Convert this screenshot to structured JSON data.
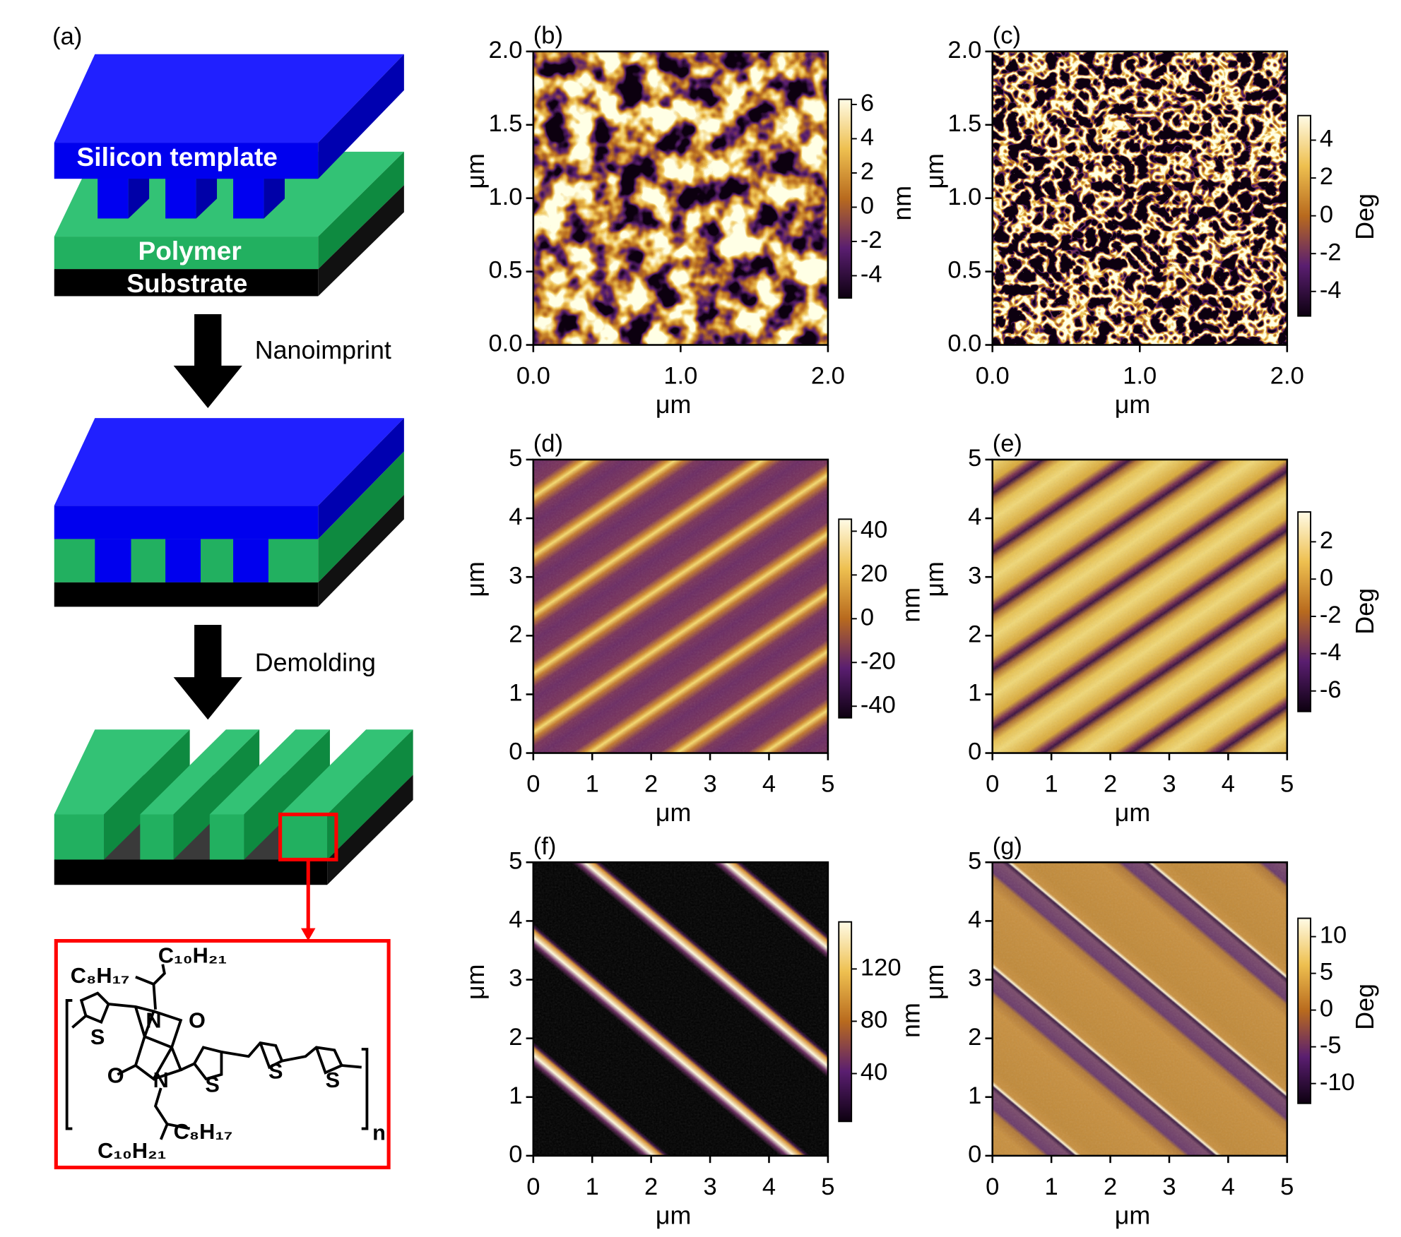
{
  "panel_a": {
    "label": "(a)",
    "template": "Silicon template",
    "polymer": "Polymer",
    "substrate": "Substrate",
    "step_1": "Nanoimprint",
    "step_2": "Demolding",
    "structure": {
      "chains": [
        "C₁₀H₂₁",
        "C₈H₁₇",
        "C₈H₁₇",
        "C₁₀H₂₁"
      ],
      "atoms": [
        "S",
        "N",
        "O",
        "O",
        "N",
        "S",
        "S",
        "S"
      ],
      "repeat": "n"
    }
  },
  "panels": [
    {
      "label": "(b)",
      "xlabel": "μm",
      "ylabel": "μm",
      "xlim": [
        0,
        2
      ],
      "xticks": [
        {
          "value": 0,
          "label": "0.0"
        },
        {
          "value": 1,
          "label": "1.0"
        },
        {
          "value": 2,
          "label": "2.0"
        }
      ],
      "ylim": [
        0,
        2
      ],
      "yticks": [
        {
          "value": 0,
          "label": "0.0"
        },
        {
          "value": 0.5,
          "label": "0.5"
        },
        {
          "value": 1,
          "label": "1.0"
        },
        {
          "value": 1.5,
          "label": "1.5"
        },
        {
          "value": 2,
          "label": "2.0"
        }
      ],
      "colorbar": {
        "label": "nm",
        "lim": [
          -5.3,
          6.3
        ],
        "ticks": [
          -4,
          -2,
          0,
          2,
          4,
          6
        ]
      }
    },
    {
      "label": "(c)",
      "xlabel": "μm",
      "ylabel": "μm",
      "xlim": [
        0,
        2
      ],
      "xticks": [
        {
          "value": 0,
          "label": "0.0"
        },
        {
          "value": 1,
          "label": "1.0"
        },
        {
          "value": 2,
          "label": "2.0"
        }
      ],
      "ylim": [
        0,
        2
      ],
      "yticks": [
        {
          "value": 0,
          "label": "0.0"
        },
        {
          "value": 0.5,
          "label": "0.5"
        },
        {
          "value": 1,
          "label": "1.0"
        },
        {
          "value": 1.5,
          "label": "1.5"
        },
        {
          "value": 2,
          "label": "2.0"
        }
      ],
      "colorbar": {
        "label": "Deg",
        "lim": [
          -5.3,
          5.3
        ],
        "ticks": [
          -4,
          -2,
          0,
          2,
          4
        ]
      }
    },
    {
      "label": "(d)",
      "xlabel": "μm",
      "ylabel": "μm",
      "xlim": [
        0,
        5
      ],
      "xticks": [
        0,
        1,
        2,
        3,
        4,
        5
      ],
      "ylim": [
        0,
        5
      ],
      "yticks": [
        0,
        1,
        2,
        3,
        4,
        5
      ],
      "colorbar": {
        "label": "nm",
        "lim": [
          -45.3,
          45.5
        ],
        "ticks": [
          -40,
          -20,
          0,
          20,
          40
        ]
      }
    },
    {
      "label": "(e)",
      "xlabel": "μm",
      "ylabel": "μm",
      "xlim": [
        0,
        5
      ],
      "xticks": [
        0,
        1,
        2,
        3,
        4,
        5
      ],
      "ylim": [
        0,
        5
      ],
      "yticks": [
        0,
        1,
        2,
        3,
        4,
        5
      ],
      "colorbar": {
        "label": "Deg",
        "lim": [
          -7.1,
          3.6
        ],
        "ticks": [
          -6,
          -4,
          -2,
          0,
          2
        ]
      }
    },
    {
      "label": "(f)",
      "xlabel": "μm",
      "ylabel": "μm",
      "xlim": [
        0,
        5
      ],
      "xticks": [
        0,
        1,
        2,
        3,
        4,
        5
      ],
      "ylim": [
        0,
        5
      ],
      "yticks": [
        0,
        1,
        2,
        3,
        4,
        5
      ],
      "colorbar": {
        "label": "nm",
        "lim": [
          3.4,
          156
        ],
        "ticks": [
          40,
          80,
          120
        ]
      }
    },
    {
      "label": "(g)",
      "xlabel": "μm",
      "ylabel": "μm",
      "xlim": [
        0,
        5
      ],
      "xticks": [
        0,
        1,
        2,
        3,
        4,
        5
      ],
      "ylim": [
        0,
        5
      ],
      "yticks": [
        0,
        1,
        2,
        3,
        4,
        5
      ],
      "colorbar": {
        "label": "Deg",
        "lim": [
          -12.7,
          12.5
        ],
        "ticks": [
          -10,
          -5,
          0,
          5,
          10
        ]
      }
    }
  ]
}
